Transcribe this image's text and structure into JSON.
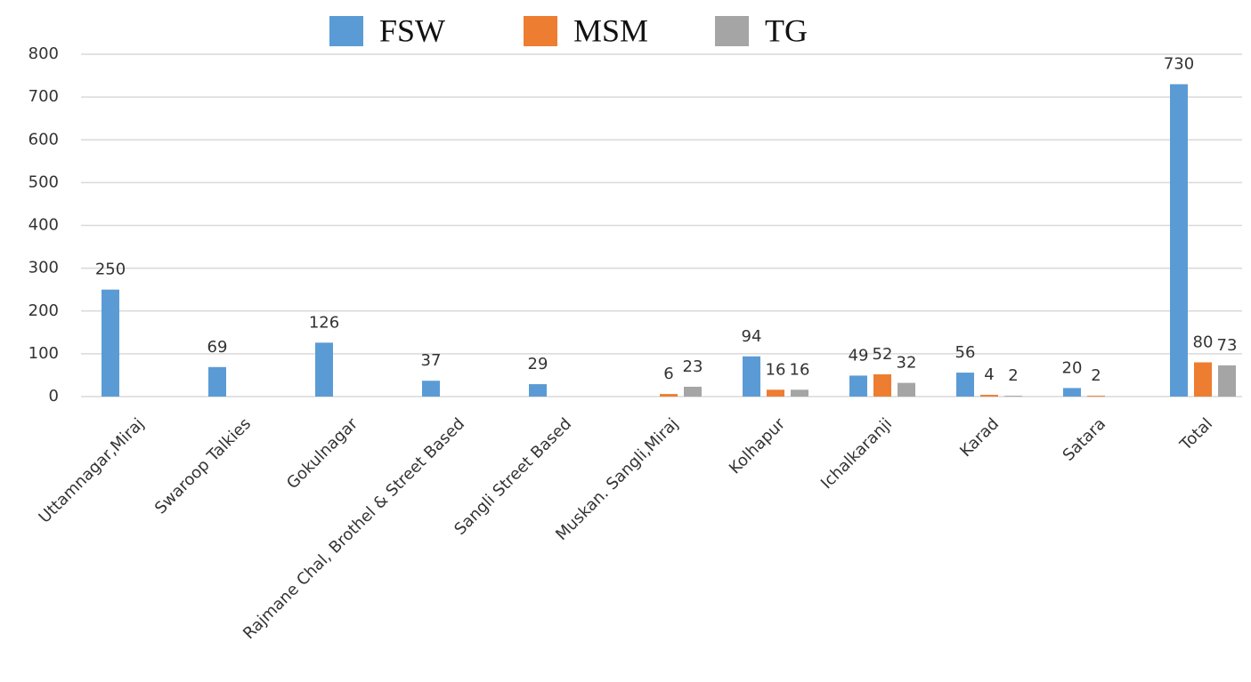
{
  "chart_data": {
    "type": "bar",
    "categories": [
      "Uttamnagar,Miraj",
      "Swaroop Talkies",
      "Gokulnagar",
      "Rajmane Chal, Brothel & Street Based",
      "Sangli Street Based",
      "Muskan. Sangli,Miraj",
      "Kolhapur",
      "Ichalkaranji",
      "Karad",
      "Satara",
      "Total"
    ],
    "series": [
      {
        "name": "FSW",
        "color": "#5b9bd5",
        "values": [
          250,
          69,
          126,
          37,
          29,
          null,
          94,
          49,
          56,
          20,
          730
        ]
      },
      {
        "name": "MSM",
        "color": "#ed7d31",
        "values": [
          null,
          null,
          null,
          null,
          null,
          6,
          16,
          52,
          4,
          2,
          80
        ]
      },
      {
        "name": "TG",
        "color": "#a5a5a5",
        "values": [
          null,
          null,
          null,
          null,
          null,
          23,
          16,
          32,
          2,
          null,
          73
        ]
      }
    ],
    "ylim": [
      0,
      800
    ],
    "yticks": [
      0,
      100,
      200,
      300,
      400,
      500,
      600,
      700,
      800
    ],
    "grid": true,
    "legend": "top"
  }
}
